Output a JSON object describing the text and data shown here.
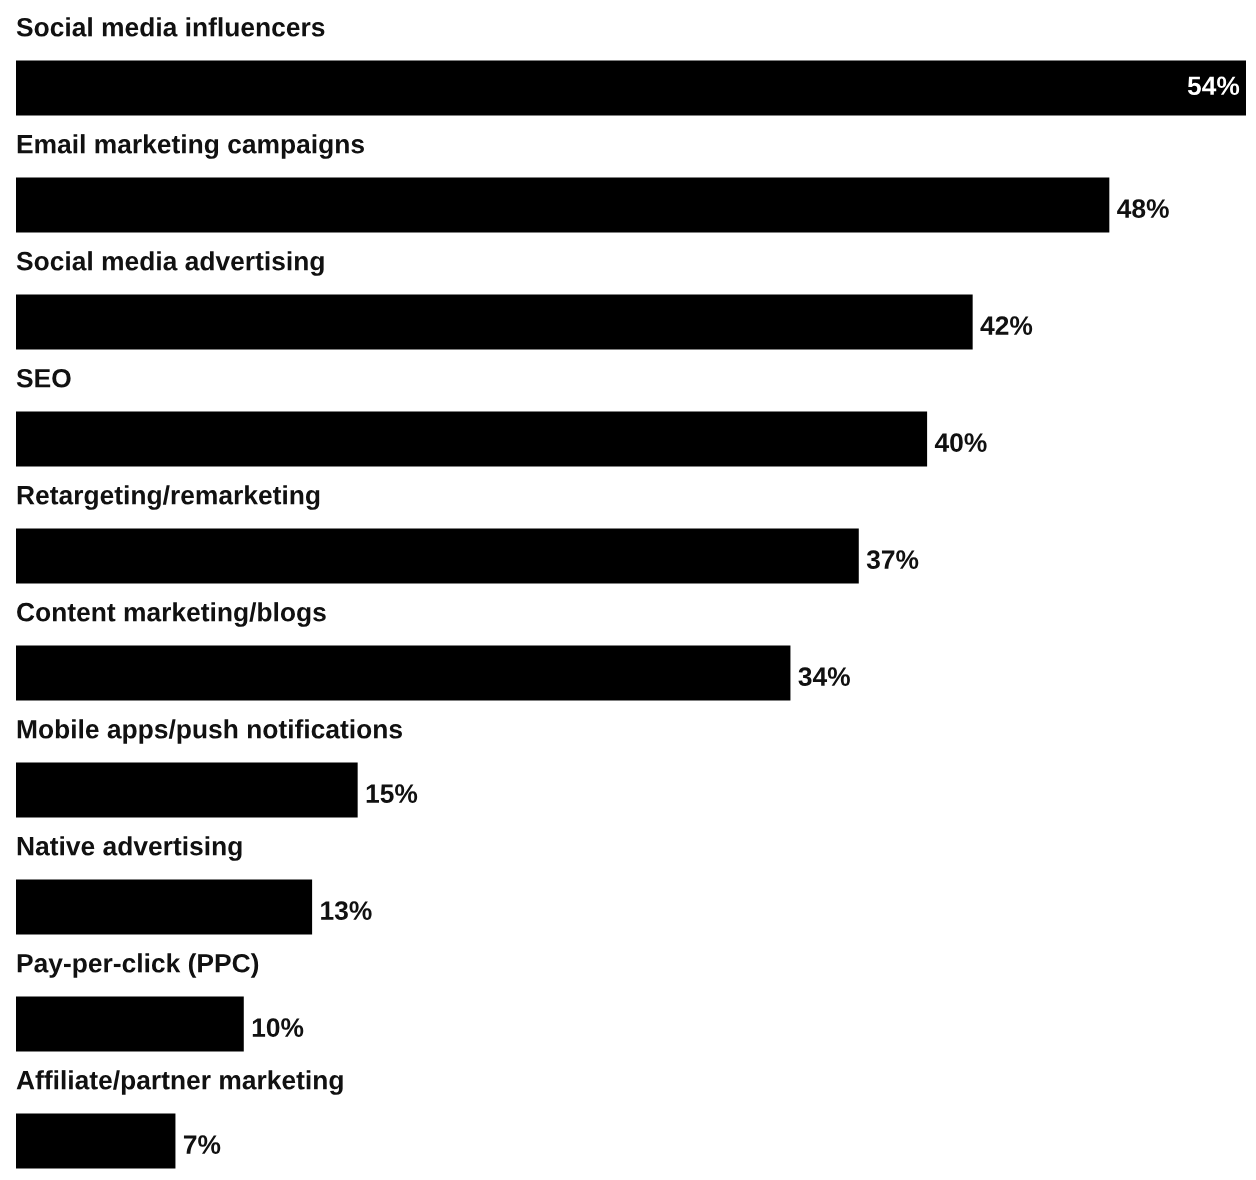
{
  "chart_data": {
    "type": "bar",
    "orientation": "horizontal",
    "categories": [
      "Social media influencers",
      "Email marketing campaigns",
      "Social media advertising",
      "SEO",
      "Retargeting/remarketing",
      "Content marketing/blogs",
      "Mobile apps/push notifications",
      "Native advertising",
      "Pay-per-click (PPC)",
      "Affiliate/partner marketing"
    ],
    "values": [
      54,
      48,
      42,
      40,
      37,
      34,
      15,
      13,
      10,
      7
    ],
    "value_labels": [
      "54%",
      "48%",
      "42%",
      "40%",
      "37%",
      "34%",
      "15%",
      "13%",
      "10%",
      "7%"
    ],
    "color": "#000000"
  }
}
